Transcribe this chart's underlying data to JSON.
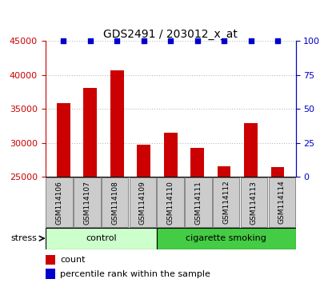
{
  "title": "GDS2491 / 203012_x_at",
  "samples": [
    "GSM114106",
    "GSM114107",
    "GSM114108",
    "GSM114109",
    "GSM114110",
    "GSM114111",
    "GSM114112",
    "GSM114113",
    "GSM114114"
  ],
  "counts": [
    35900,
    38100,
    40700,
    29700,
    31500,
    29300,
    26600,
    32900,
    26500
  ],
  "percentile_ranks": [
    100,
    100,
    100,
    100,
    100,
    100,
    100,
    100,
    100
  ],
  "ylim_left": [
    25000,
    45000
  ],
  "ylim_right": [
    0,
    100
  ],
  "yticks_left": [
    25000,
    30000,
    35000,
    40000,
    45000
  ],
  "yticks_right": [
    0,
    25,
    50,
    75,
    100
  ],
  "bar_color": "#cc0000",
  "dot_color": "#0000cc",
  "groups": [
    {
      "label": "control",
      "n": 4,
      "color": "#ccffcc",
      "edge_color": "#88cc88"
    },
    {
      "label": "cigarette smoking",
      "n": 5,
      "color": "#44cc44",
      "edge_color": "#228822"
    }
  ],
  "group_label": "stress",
  "legend_count_label": "count",
  "legend_pct_label": "percentile rank within the sample",
  "grid_color": "#bbbbbb",
  "bar_color_left": "#cc0000",
  "dot_color_right": "#0000cc",
  "tick_label_fontsize": 8,
  "bar_label_fontsize": 6.5,
  "title_fontsize": 10,
  "xtick_box_color": "#cccccc",
  "xtick_box_edge": "#888888"
}
